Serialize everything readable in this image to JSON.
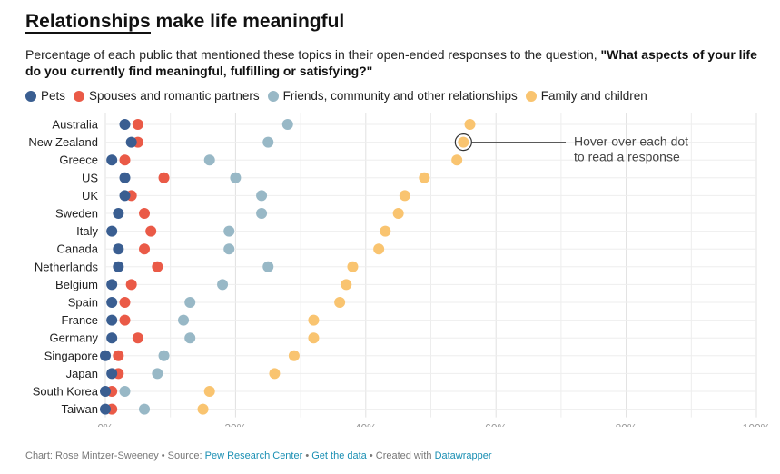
{
  "header": {
    "title_underlined": "Relationships",
    "title_rest": " make life meaningful",
    "subtitle_plain": "Percentage of each public that mentioned these topics in their open-ended responses to the question, ",
    "subtitle_bold": "\"What aspects of your life do you currently find meaningful, fulfilling or satisfying?\""
  },
  "colors": {
    "pets": "#3a5e91",
    "spouses": "#ea5a47",
    "friends": "#98b8c6",
    "family": "#f9c470"
  },
  "annotation": {
    "line1": "Hover over each dot",
    "line2": "to read a response"
  },
  "chart_data": {
    "type": "dot",
    "title": "Relationships make life meaningful",
    "xlabel": "",
    "ylabel": "",
    "xlim": [
      0,
      100
    ],
    "x_ticks": [
      "0%",
      "20%",
      "40%",
      "60%",
      "80%",
      "100%"
    ],
    "tick_values": [
      0,
      20,
      40,
      60,
      80,
      100
    ],
    "grid": true,
    "categories": [
      "Australia",
      "New Zealand",
      "Greece",
      "US",
      "UK",
      "Sweden",
      "Italy",
      "Canada",
      "Netherlands",
      "Belgium",
      "Spain",
      "France",
      "Germany",
      "Singapore",
      "Japan",
      "South Korea",
      "Taiwan"
    ],
    "series": [
      {
        "name": "Pets",
        "key": "pets",
        "values": [
          3,
          4,
          1,
          3,
          3,
          2,
          1,
          2,
          2,
          1,
          1,
          1,
          1,
          0,
          1,
          0,
          0
        ]
      },
      {
        "name": "Spouses and romantic partners",
        "key": "spouses",
        "values": [
          5,
          5,
          3,
          9,
          4,
          6,
          7,
          6,
          8,
          4,
          3,
          3,
          5,
          2,
          2,
          1,
          1
        ]
      },
      {
        "name": "Friends, community and other relationships",
        "key": "friends",
        "values": [
          28,
          25,
          16,
          20,
          24,
          24,
          19,
          19,
          25,
          18,
          13,
          12,
          13,
          9,
          8,
          3,
          6
        ]
      },
      {
        "name": "Family and children",
        "key": "family",
        "values": [
          56,
          55,
          54,
          49,
          46,
          45,
          43,
          42,
          38,
          37,
          36,
          32,
          32,
          29,
          26,
          16,
          15
        ]
      }
    ]
  },
  "footer": {
    "prefix": "Chart: Rose Mintzer-Sweeney • Source: ",
    "source_link": "Pew Research Center",
    "sep1": " • ",
    "data_link": "Get the data",
    "sep2": " • Created with ",
    "tool_link": "Datawrapper"
  }
}
